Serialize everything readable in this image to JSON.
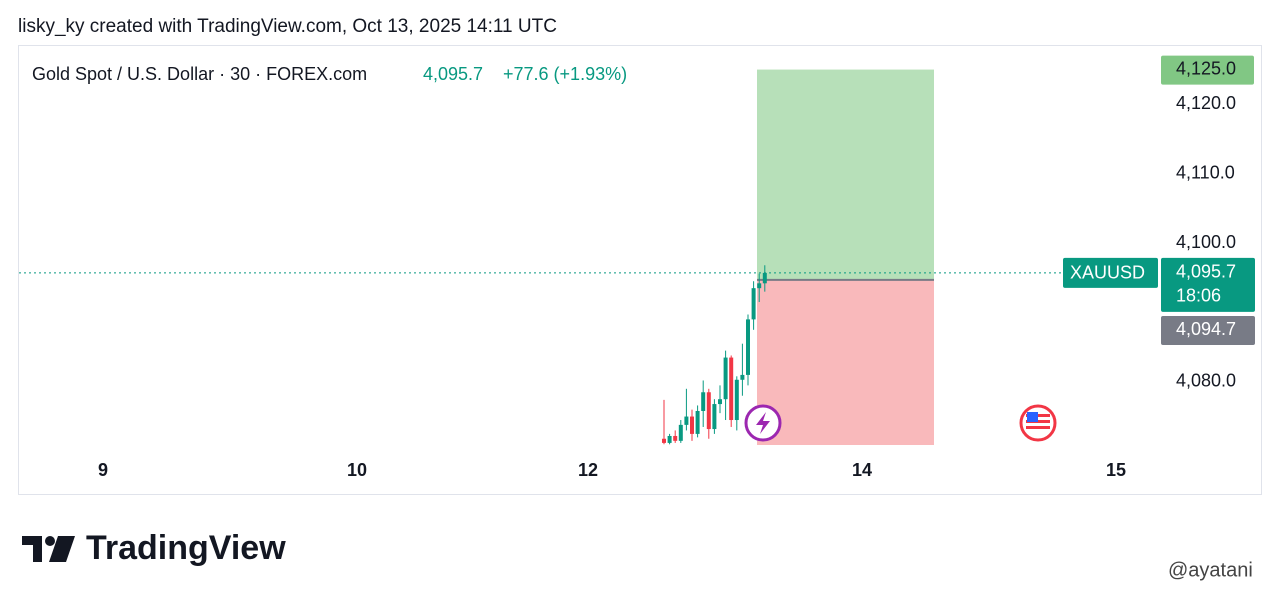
{
  "header": {
    "caption": "lisky_ky created with TradingView.com, Oct 13, 2025 14:11 UTC"
  },
  "chart_data": {
    "type": "candlestick",
    "title": "Gold Spot / U.S. Dollar · 30 · FOREX.com",
    "change_label": "+77.6 (+1.93%)",
    "up_color": "#089981",
    "down_color": "#f23645",
    "candles": {
      "open": [
        4071.8,
        4071.2,
        4072.2,
        4071.5,
        4073.8,
        4075.0,
        4072.5,
        4075.8,
        4078.5,
        4073.2,
        4076.8,
        4077.5,
        4083.5,
        4074.5,
        4080.3,
        4081.0,
        4089.0,
        4093.5,
        4094.2
      ],
      "high": [
        4077.4,
        4072.5,
        4073.0,
        4074.5,
        4079.0,
        4076.0,
        4076.6,
        4080.2,
        4079.0,
        4077.5,
        4079.5,
        4084.5,
        4083.8,
        4080.8,
        4085.5,
        4089.7,
        4094.5,
        4095.6,
        4096.8
      ],
      "low": [
        4071.0,
        4071.0,
        4071.2,
        4071.2,
        4073.0,
        4071.5,
        4072.0,
        4073.5,
        4071.8,
        4072.5,
        4075.5,
        4074.5,
        4073.5,
        4073.0,
        4078.0,
        4079.5,
        4087.5,
        4091.5,
        4093.0
      ],
      "close": [
        4071.2,
        4072.2,
        4071.5,
        4073.8,
        4075.0,
        4072.5,
        4075.8,
        4078.5,
        4073.2,
        4076.8,
        4077.5,
        4083.5,
        4074.5,
        4080.3,
        4081.0,
        4089.0,
        4093.5,
        4094.2,
        4095.7
      ]
    },
    "ylim": [
      4070.9,
      4127.1
    ],
    "yticks": [
      {
        "value": 4080,
        "label": "4,080.0"
      },
      {
        "value": 4100,
        "label": "4,100.0"
      },
      {
        "value": 4110,
        "label": "4,110.0"
      },
      {
        "value": 4120,
        "label": "4,120.0"
      }
    ],
    "xticks": [
      "9",
      "10",
      "12",
      "14",
      "15"
    ],
    "current_price": {
      "symbol": "XAUUSD",
      "value": 4095.7,
      "label": "4,095.7",
      "countdown": "18:06"
    },
    "position": {
      "target": {
        "value": 4125,
        "label": "4,125.0"
      },
      "entry": {
        "value": 4094.7,
        "label": "4,094.7"
      },
      "stop": 4070.9
    }
  },
  "footer": {
    "logo": "TradingView",
    "watermark": "@ayatani"
  }
}
